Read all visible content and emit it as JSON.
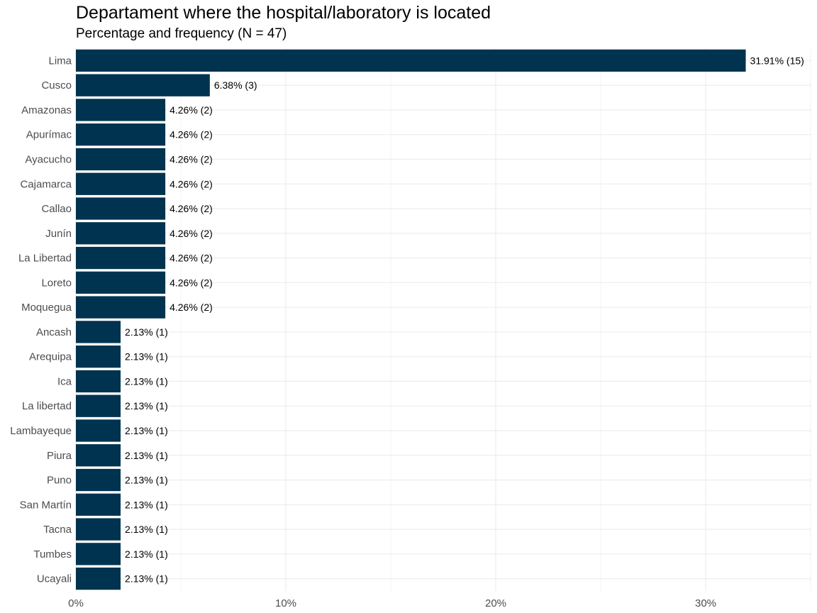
{
  "chart_data": {
    "type": "bar",
    "orientation": "horizontal",
    "title": "Departament where the hospital/laboratory is located",
    "subtitle": "Percentage and frequency (N = 47)",
    "xlabel": "",
    "ylabel": "",
    "categories": [
      "Lima",
      "Cusco",
      "Amazonas",
      "Apurímac",
      "Ayacucho",
      "Cajamarca",
      "Callao",
      "Junín",
      "La Libertad",
      "Loreto",
      "Moquegua",
      "Ancash",
      "Arequipa",
      "Ica",
      "La libertad",
      "Lambayeque",
      "Piura",
      "Puno",
      "San Martín",
      "Tacna",
      "Tumbes",
      "Ucayali"
    ],
    "values": [
      31.91,
      6.38,
      4.26,
      4.26,
      4.26,
      4.26,
      4.26,
      4.26,
      4.26,
      4.26,
      4.26,
      2.13,
      2.13,
      2.13,
      2.13,
      2.13,
      2.13,
      2.13,
      2.13,
      2.13,
      2.13,
      2.13
    ],
    "counts": [
      15,
      3,
      2,
      2,
      2,
      2,
      2,
      2,
      2,
      2,
      2,
      1,
      1,
      1,
      1,
      1,
      1,
      1,
      1,
      1,
      1,
      1
    ],
    "data_labels": [
      "31.91% (15)",
      "6.38% (3)",
      "4.26% (2)",
      "4.26% (2)",
      "4.26% (2)",
      "4.26% (2)",
      "4.26% (2)",
      "4.26% (2)",
      "4.26% (2)",
      "4.26% (2)",
      "4.26% (2)",
      "2.13% (1)",
      "2.13% (1)",
      "2.13% (1)",
      "2.13% (1)",
      "2.13% (1)",
      "2.13% (1)",
      "2.13% (1)",
      "2.13% (1)",
      "2.13% (1)",
      "2.13% (1)",
      "2.13% (1)"
    ],
    "x_ticks": [
      0,
      10,
      20,
      30
    ],
    "x_tick_labels": [
      "0%",
      "10%",
      "20%",
      "30%"
    ],
    "xlim": [
      0,
      35
    ],
    "grid": true,
    "bar_color": "#00334f",
    "grid_color": "#ebebeb"
  }
}
